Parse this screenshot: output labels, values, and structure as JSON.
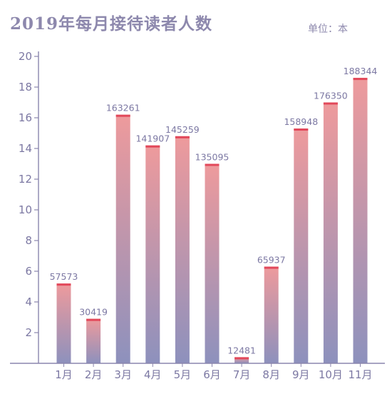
{
  "title": "2019年每月接待读者人数",
  "unit_label": "单位：本",
  "colors": {
    "text": "#8d88ad",
    "axis": "#8a86ad",
    "bar_top": "#ee9a9c",
    "bar_bottom": "#8d91bd",
    "bar_cap": "#e2485a"
  },
  "chart_data": {
    "type": "bar",
    "title": "2019年每月接待读者人数",
    "unit": "单位：本",
    "categories": [
      "1月",
      "2月",
      "3月",
      "4月",
      "5月",
      "6月",
      "7月",
      "8月",
      "9月",
      "10月",
      "11月"
    ],
    "values": [
      57573,
      30419,
      163261,
      141907,
      145259,
      135095,
      12481,
      65937,
      158948,
      176350,
      188344
    ],
    "bar_heights": [
      5.2,
      2.9,
      16.2,
      14.2,
      14.8,
      13.0,
      0.4,
      6.3,
      15.3,
      17.0,
      18.6
    ],
    "y_ticks": [
      2,
      4,
      6,
      8,
      10,
      12,
      14,
      16,
      18,
      20
    ],
    "ylim": [
      0,
      20
    ],
    "grid": false,
    "legend": "none"
  }
}
